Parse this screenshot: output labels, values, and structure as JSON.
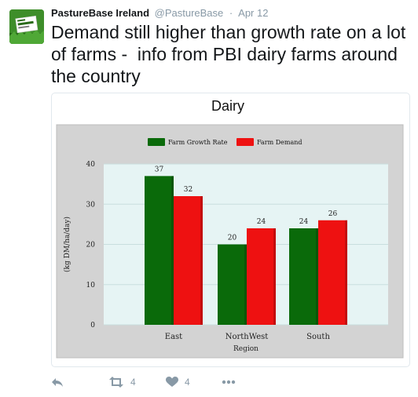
{
  "tweet": {
    "display_name": "PastureBase Ireland",
    "handle": "@PastureBase",
    "separator": "·",
    "date": "Apr 12",
    "text": "Demand still higher than growth rate on a lot of farms -  info from PBI dairy farms around the country",
    "avatar_text": "PastureBase"
  },
  "actions": {
    "reply_icon": "reply-icon",
    "retweet_icon": "retweet-icon",
    "retweet_count": "4",
    "like_icon": "heart-icon",
    "like_count": "4",
    "more_icon": "more-icon"
  },
  "colors": {
    "growth": "#0a6a0a",
    "demand": "#ee1111",
    "plot_bg": "#e6f4f4",
    "frame_bg": "#d3d3d3",
    "icon": "#8899a6"
  },
  "chart_data": {
    "type": "bar",
    "title": "Dairy",
    "categories": [
      "East",
      "NorthWest",
      "South"
    ],
    "series": [
      {
        "name": "Farm Growth Rate",
        "values": [
          37,
          20,
          24
        ]
      },
      {
        "name": "Farm Demand",
        "values": [
          32,
          24,
          26
        ]
      }
    ],
    "xlabel": "Region",
    "ylabel": "(kg DM/ha/day)",
    "ylim": [
      0,
      40
    ],
    "yticks": [
      "0",
      "10",
      "20",
      "30",
      "40"
    ],
    "legend": "top-center",
    "grid": true
  }
}
